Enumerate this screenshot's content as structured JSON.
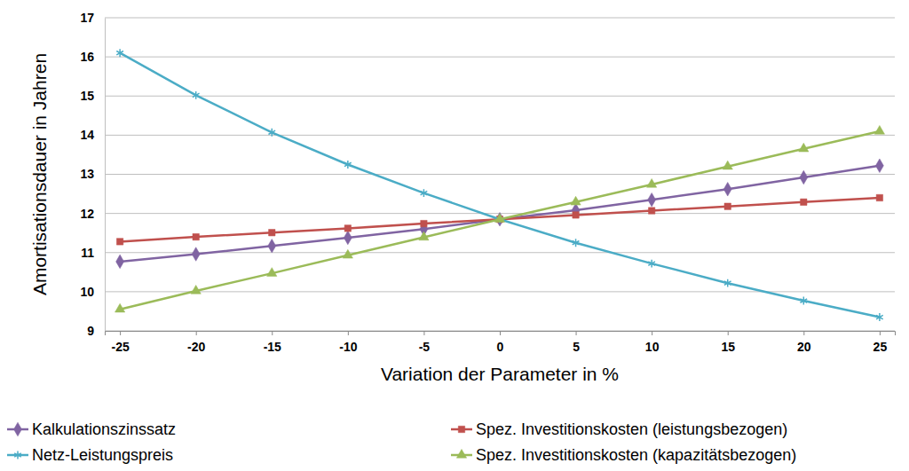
{
  "chart_data": {
    "type": "line",
    "x_label": "Variation der Parameter in %",
    "y_label": "Amortisationsdauer in Jahren",
    "categories": [
      "-25",
      "-20",
      "-15",
      "-10",
      "-5",
      "0",
      "5",
      "10",
      "15",
      "20",
      "25"
    ],
    "ylim": [
      9,
      17
    ],
    "yticks": [
      9,
      10,
      11,
      12,
      13,
      14,
      15,
      16,
      17
    ],
    "grid": true,
    "legend": "bottom",
    "series": [
      {
        "name": "Kalkulationszinssatz",
        "color": "#8064a2",
        "marker": "diamond",
        "values": [
          10.77,
          10.96,
          11.17,
          11.38,
          11.6,
          11.85,
          12.08,
          12.35,
          12.62,
          12.92,
          13.22
        ]
      },
      {
        "name": "Spez. Investitionskosten (leistungsbezogen)",
        "color": "#c0504d",
        "marker": "square",
        "values": [
          11.28,
          11.4,
          11.51,
          11.62,
          11.74,
          11.85,
          11.96,
          12.07,
          12.18,
          12.29,
          12.4
        ]
      },
      {
        "name": "Netz-Leistungspreis",
        "color": "#4bacc6",
        "marker": "asterisk",
        "values": [
          16.1,
          15.02,
          14.07,
          13.25,
          12.52,
          11.85,
          11.25,
          10.72,
          10.22,
          9.77,
          9.35
        ]
      },
      {
        "name": "Spez. Investitionskosten (kapazitätsbezogen)",
        "color": "#9bbb59",
        "marker": "triangle",
        "values": [
          9.55,
          10.02,
          10.47,
          10.93,
          11.39,
          11.85,
          12.29,
          12.74,
          13.2,
          13.65,
          14.1
        ]
      }
    ]
  }
}
